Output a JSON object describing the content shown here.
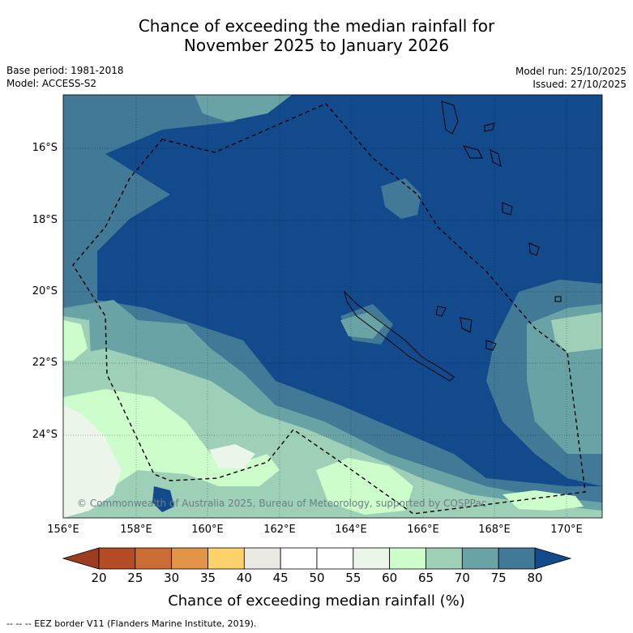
{
  "title_line1": "Chance of exceeding the median rainfall for",
  "title_line2": "November 2025 to January 2026",
  "base_period": "Base period: 1981-2018",
  "model": "Model: ACCESS-S2",
  "model_run": "Model run: 25/10/2025",
  "issued": "Issued: 27/10/2025",
  "lat_labels": [
    "16°S",
    "18°S",
    "20°S",
    "22°S",
    "24°S"
  ],
  "lon_labels": [
    "156°E",
    "158°E",
    "160°E",
    "162°E",
    "164°E",
    "166°E",
    "168°E",
    "170°E"
  ],
  "copyright": "© Commonwealth of Australia 2025, Bureau of Meteorology, supported by COSPPac",
  "colorbar": {
    "ticks": [
      "20",
      "25",
      "30",
      "35",
      "40",
      "45",
      "50",
      "55",
      "60",
      "65",
      "70",
      "75",
      "80"
    ],
    "colors": [
      "#b34b24",
      "#cb6c34",
      "#e29449",
      "#fdd26a",
      "#ebe9e3",
      "#ffffff",
      "#ffffff",
      "#ebf5ea",
      "#ccfdcb",
      "#9dd0b7",
      "#6aa3a6",
      "#427996"
    ],
    "low_color": "#9c3c20",
    "high_color": "#134a8c",
    "label": "Chance of exceeding median rainfall (%)"
  },
  "footer": "--  --  -- EEZ border V11 (Flanders Marine Institute, 2019)."
}
